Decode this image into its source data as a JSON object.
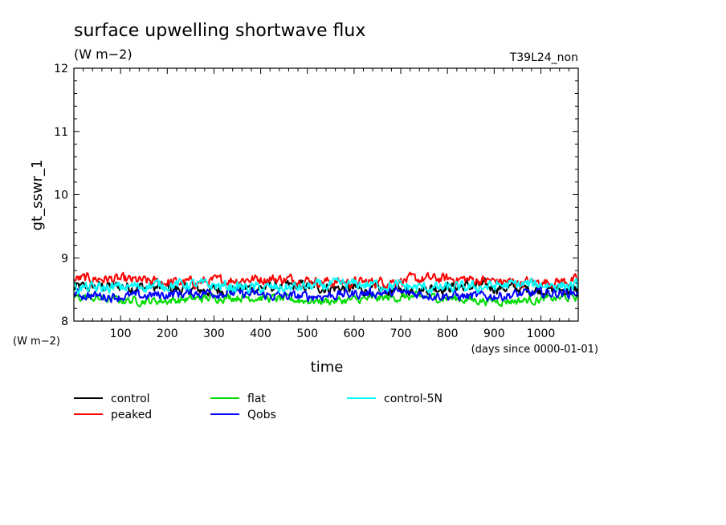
{
  "chart_data": {
    "type": "line",
    "title": "surface upwelling shortwave flux",
    "units": "(W m−2)",
    "run_label": "T39L24_non",
    "ylabel": "gt_sswr_1",
    "y_unit_label": "(W m−2)",
    "xlabel": "time",
    "x_unit_label": "(days since 0000-01-01)",
    "xlim": [
      0,
      1080
    ],
    "ylim": [
      8,
      12
    ],
    "x_ticks": [
      100,
      200,
      300,
      400,
      500,
      600,
      700,
      800,
      900,
      1000
    ],
    "y_ticks": [
      8,
      9,
      10,
      11,
      12
    ],
    "grid": false,
    "legend_position": "bottom",
    "series": [
      {
        "name": "control",
        "color": "#000000",
        "mean": 8.52,
        "amplitude": 0.17
      },
      {
        "name": "peaked",
        "color": "#ff0000",
        "mean": 8.64,
        "amplitude": 0.15
      },
      {
        "name": "flat",
        "color": "#00dd00",
        "mean": 8.35,
        "amplitude": 0.12
      },
      {
        "name": "Qobs",
        "color": "#0000ff",
        "mean": 8.42,
        "amplitude": 0.14
      },
      {
        "name": "control-5N",
        "color": "#00ffff",
        "mean": 8.55,
        "amplitude": 0.16
      }
    ]
  }
}
